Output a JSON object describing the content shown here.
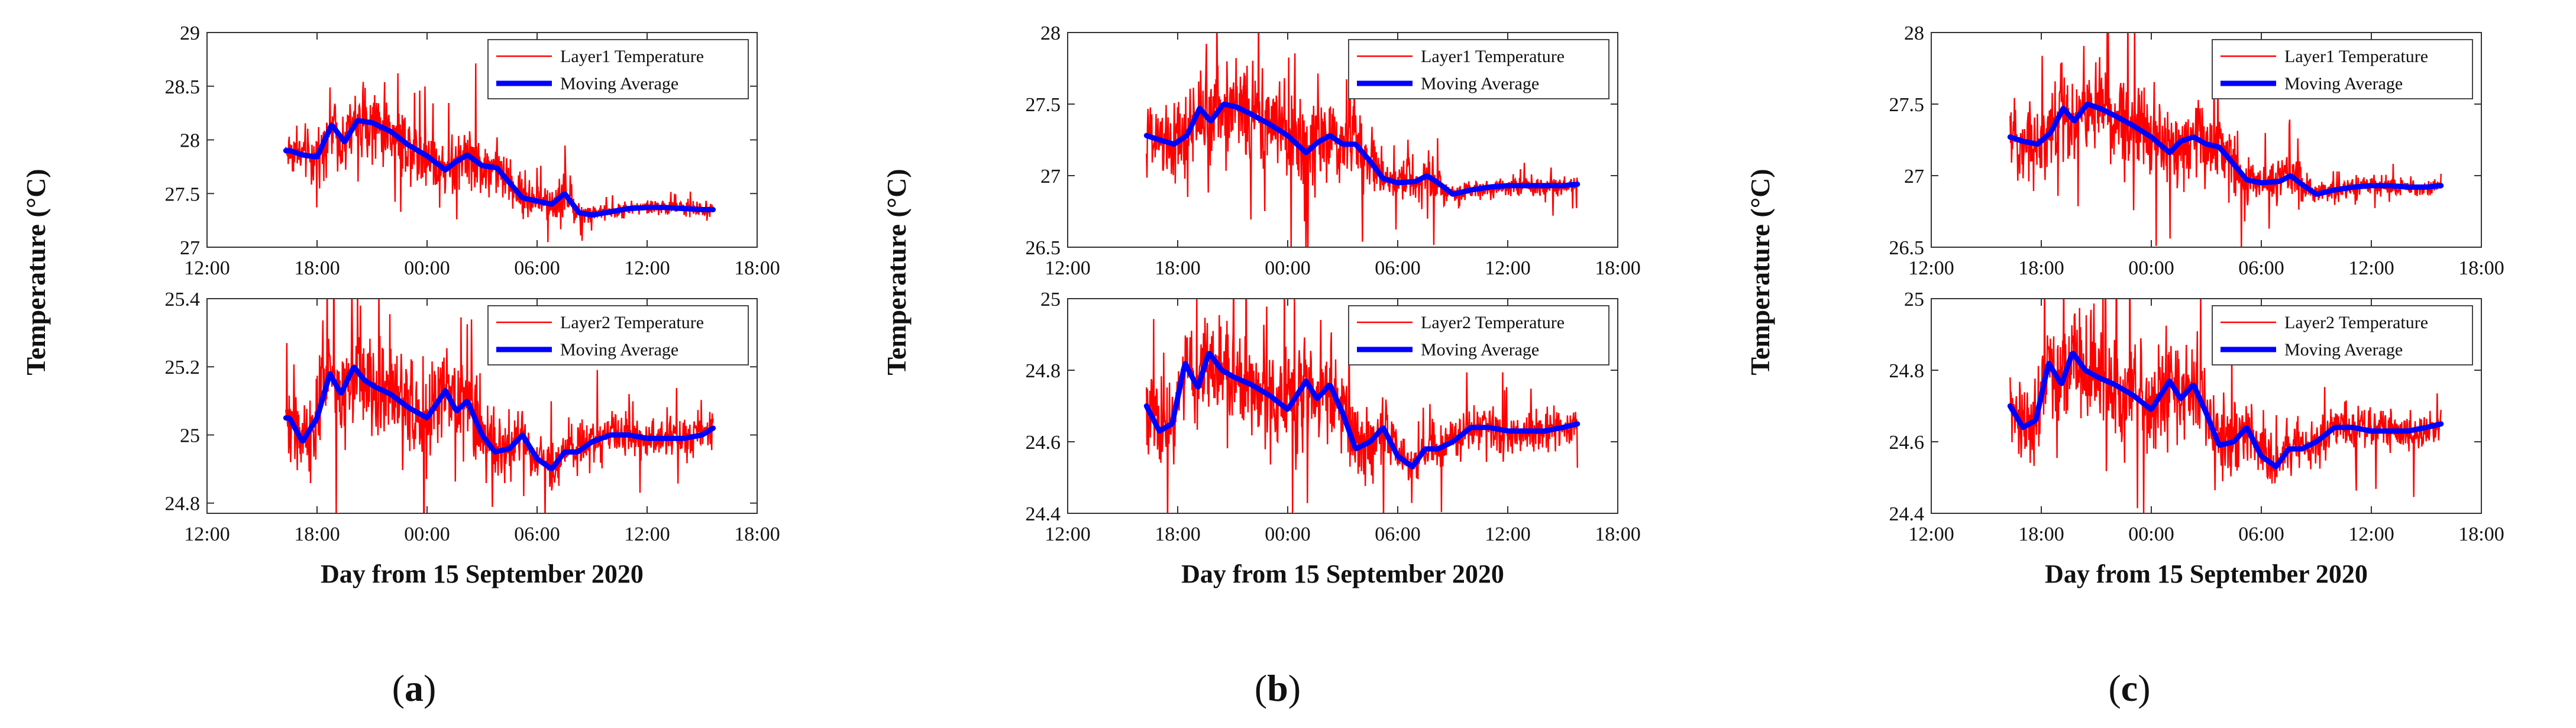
{
  "chart_data": [
    {
      "panel_label": "a",
      "type": "line",
      "ylabel": "Temperature (°C)",
      "xlabel": "Day from 15 September 2020",
      "x_ticks": [
        "12:00",
        "18:00",
        "00:00",
        "06:00",
        "12:00",
        "18:00"
      ],
      "x_range_hours": [
        12,
        42
      ],
      "subplots": [
        {
          "name": "Layer1",
          "ylim": [
            27,
            29
          ],
          "y_ticks": [
            "27",
            "27.5",
            "28",
            "28.5",
            "29"
          ],
          "y_tick_values": [
            27,
            27.5,
            28,
            28.5,
            29
          ],
          "series": [
            {
              "name": "Layer1 Temperature",
              "color": "#ff0000"
            },
            {
              "name": "Moving Average",
              "color": "#0000ff"
            }
          ],
          "moving_average": {
            "x": [
              16.5,
              17.2,
              18,
              18.8,
              19.5,
              20.2,
              21,
              22,
              23,
              24,
              25,
              25.6,
              26.2,
              27,
              27.8,
              28.5,
              29.2,
              30,
              30.8,
              31.5,
              32.3,
              33,
              34,
              35,
              36,
              37,
              38,
              39,
              39.6
            ],
            "y": [
              27.9,
              27.86,
              27.84,
              28.14,
              27.98,
              28.18,
              28.16,
              28.08,
              27.95,
              27.85,
              27.72,
              27.8,
              27.86,
              27.76,
              27.74,
              27.6,
              27.46,
              27.43,
              27.4,
              27.5,
              27.32,
              27.3,
              27.33,
              27.36,
              27.37,
              27.37,
              27.36,
              27.35,
              27.35
            ]
          },
          "noise_amplitude": [
            [
              16.5,
              0.18
            ],
            [
              20,
              0.3
            ],
            [
              25,
              0.28
            ],
            [
              28,
              0.22
            ],
            [
              30,
              0.14
            ],
            [
              31.5,
              0.18
            ],
            [
              33,
              0.07
            ],
            [
              39.6,
              0.06
            ]
          ]
        },
        {
          "name": "Layer2",
          "ylim": [
            24.77,
            25.4
          ],
          "y_ticks": [
            "24.8",
            "25",
            "25.2",
            "25.4"
          ],
          "y_tick_values": [
            24.8,
            25,
            25.2,
            25.4
          ],
          "series": [
            {
              "name": "Layer2 Temperature",
              "color": "#ff0000"
            },
            {
              "name": "Moving Average",
              "color": "#0000ff"
            }
          ],
          "moving_average": {
            "x": [
              16.5,
              17.2,
              18,
              18.7,
              19.3,
              20,
              20.6,
              21.2,
              22,
              23,
              24,
              25,
              25.6,
              26.2,
              27,
              27.7,
              28.5,
              29.2,
              30,
              30.8,
              31.5,
              32.2,
              33,
              34,
              35,
              36,
              37,
              38,
              39,
              39.6
            ],
            "y": [
              25.05,
              24.98,
              25.05,
              25.18,
              25.12,
              25.2,
              25.16,
              25.14,
              25.12,
              25.08,
              25.05,
              25.13,
              25.07,
              25.1,
              25.0,
              24.95,
              24.96,
              25.0,
              24.93,
              24.9,
              24.95,
              24.95,
              24.98,
              25.0,
              25.0,
              24.99,
              24.99,
              24.99,
              25.0,
              25.02
            ]
          },
          "noise_amplitude": [
            [
              16.5,
              0.1
            ],
            [
              20,
              0.14
            ],
            [
              25,
              0.14
            ],
            [
              28,
              0.1
            ],
            [
              30,
              0.06
            ],
            [
              39.6,
              0.05
            ]
          ]
        }
      ]
    },
    {
      "panel_label": "b",
      "type": "line",
      "ylabel": "Temperature (°C)",
      "xlabel": "Day from 15 September 2020",
      "x_ticks": [
        "12:00",
        "18:00",
        "00:00",
        "06:00",
        "12:00",
        "18:00"
      ],
      "x_range_hours": [
        12,
        42
      ],
      "subplots": [
        {
          "name": "Layer1",
          "ylim": [
            26.5,
            28
          ],
          "y_ticks": [
            "26.5",
            "27",
            "27.5",
            "28"
          ],
          "y_tick_values": [
            26.5,
            27,
            27.5,
            28
          ],
          "series": [
            {
              "name": "Layer1 Temperature",
              "color": "#ff0000"
            },
            {
              "name": "Moving Average",
              "color": "#0000ff"
            }
          ],
          "moving_average": {
            "x": [
              16.3,
              17,
              17.8,
              18.5,
              19.2,
              19.8,
              20.5,
              21.2,
              22,
              23,
              24,
              25,
              25.6,
              26.3,
              27,
              27.7,
              28.5,
              29.2,
              30,
              31,
              31.6,
              32.2,
              33,
              34,
              35,
              36,
              37,
              38,
              39,
              39.8
            ],
            "y": [
              27.28,
              27.25,
              27.22,
              27.28,
              27.47,
              27.38,
              27.5,
              27.48,
              27.43,
              27.36,
              27.28,
              27.16,
              27.23,
              27.28,
              27.22,
              27.22,
              27.1,
              26.98,
              26.95,
              26.96,
              27.0,
              26.95,
              26.87,
              26.9,
              26.92,
              26.93,
              26.93,
              26.93,
              26.93,
              26.94
            ]
          },
          "noise_amplitude": [
            [
              16.3,
              0.2
            ],
            [
              20,
              0.3
            ],
            [
              25,
              0.28
            ],
            [
              28.5,
              0.2
            ],
            [
              30,
              0.1
            ],
            [
              32,
              0.16
            ],
            [
              33,
              0.07
            ],
            [
              39.8,
              0.06
            ]
          ]
        },
        {
          "name": "Layer2",
          "ylim": [
            24.4,
            25.0
          ],
          "y_ticks": [
            "24.4",
            "24.6",
            "24.8",
            "25"
          ],
          "y_tick_values": [
            24.4,
            24.6,
            24.8,
            25
          ],
          "series": [
            {
              "name": "Layer2 Temperature",
              "color": "#ff0000"
            },
            {
              "name": "Moving Average",
              "color": "#0000ff"
            }
          ],
          "moving_average": {
            "x": [
              16.3,
              17,
              17.7,
              18.4,
              19.1,
              19.7,
              20.4,
              21.1,
              22,
              23,
              24,
              25,
              25.6,
              26.3,
              27,
              27.7,
              28.5,
              29.2,
              30,
              30.8,
              31.5,
              32.2,
              33,
              34,
              35,
              36,
              37,
              38,
              39,
              39.8
            ],
            "y": [
              24.7,
              24.63,
              24.65,
              24.82,
              24.75,
              24.85,
              24.8,
              24.78,
              24.76,
              24.73,
              24.69,
              24.77,
              24.72,
              24.76,
              24.68,
              24.58,
              24.6,
              24.64,
              24.56,
              24.53,
              24.58,
              24.58,
              24.6,
              24.64,
              24.64,
              24.63,
              24.63,
              24.63,
              24.64,
              24.65
            ]
          },
          "noise_amplitude": [
            [
              16.3,
              0.1
            ],
            [
              20,
              0.13
            ],
            [
              25,
              0.13
            ],
            [
              28.5,
              0.1
            ],
            [
              30,
              0.06
            ],
            [
              39.8,
              0.05
            ]
          ]
        }
      ]
    },
    {
      "panel_label": "c",
      "type": "line",
      "ylabel": "Temperature (°C)",
      "xlabel": "Day from 15 September 2020",
      "x_ticks": [
        "12:00",
        "18:00",
        "00:00",
        "06:00",
        "12:00",
        "18:00"
      ],
      "x_range_hours": [
        12,
        42
      ],
      "subplots": [
        {
          "name": "Layer1",
          "ylim": [
            26.5,
            28
          ],
          "y_ticks": [
            "26.5",
            "27",
            "27.5",
            "28"
          ],
          "y_tick_values": [
            26.5,
            27,
            27.5,
            28
          ],
          "series": [
            {
              "name": "Layer1 Temperature",
              "color": "#ff0000"
            },
            {
              "name": "Moving Average",
              "color": "#0000ff"
            }
          ],
          "moving_average": {
            "x": [
              16.3,
              17,
              17.8,
              18.5,
              19.2,
              19.8,
              20.5,
              21.2,
              22,
              23,
              24,
              25,
              25.6,
              26.3,
              27,
              27.7,
              28.5,
              29.2,
              30,
              31,
              31.6,
              32.2,
              33,
              34,
              35,
              36,
              37,
              38,
              39,
              39.8
            ],
            "y": [
              27.27,
              27.24,
              27.22,
              27.3,
              27.47,
              27.38,
              27.5,
              27.47,
              27.42,
              27.35,
              27.27,
              27.16,
              27.24,
              27.27,
              27.22,
              27.2,
              27.08,
              26.97,
              26.95,
              26.96,
              27.0,
              26.94,
              26.87,
              26.9,
              26.92,
              26.93,
              26.93,
              26.92,
              26.92,
              26.93
            ]
          },
          "noise_amplitude": [
            [
              16.3,
              0.2
            ],
            [
              20,
              0.3
            ],
            [
              25,
              0.28
            ],
            [
              28.5,
              0.2
            ],
            [
              30,
              0.1
            ],
            [
              32,
              0.16
            ],
            [
              33,
              0.07
            ],
            [
              39.8,
              0.06
            ]
          ]
        },
        {
          "name": "Layer2",
          "ylim": [
            24.4,
            25.0
          ],
          "y_ticks": [
            "24.4",
            "24.6",
            "24.8",
            "25"
          ],
          "y_tick_values": [
            24.4,
            24.6,
            24.8,
            25
          ],
          "series": [
            {
              "name": "Layer2 Temperature",
              "color": "#ff0000"
            },
            {
              "name": "Moving Average",
              "color": "#0000ff"
            }
          ],
          "moving_average": {
            "x": [
              16.3,
              17,
              17.7,
              18.4,
              19.1,
              19.7,
              20.4,
              21.1,
              22,
              23,
              24,
              25,
              25.6,
              26.3,
              27,
              27.7,
              28.5,
              29.2,
              30,
              30.8,
              31.5,
              32.2,
              33,
              34,
              35,
              36,
              37,
              38,
              39,
              39.8
            ],
            "y": [
              24.7,
              24.64,
              24.66,
              24.82,
              24.76,
              24.85,
              24.8,
              24.78,
              24.76,
              24.73,
              24.69,
              24.77,
              24.72,
              24.76,
              24.68,
              24.59,
              24.6,
              24.64,
              24.56,
              24.53,
              24.58,
              24.58,
              24.6,
              24.64,
              24.64,
              24.63,
              24.63,
              24.63,
              24.64,
              24.65
            ]
          },
          "noise_amplitude": [
            [
              16.3,
              0.1
            ],
            [
              20,
              0.13
            ],
            [
              25,
              0.13
            ],
            [
              28.5,
              0.1
            ],
            [
              30,
              0.06
            ],
            [
              39.8,
              0.05
            ]
          ]
        }
      ]
    }
  ]
}
